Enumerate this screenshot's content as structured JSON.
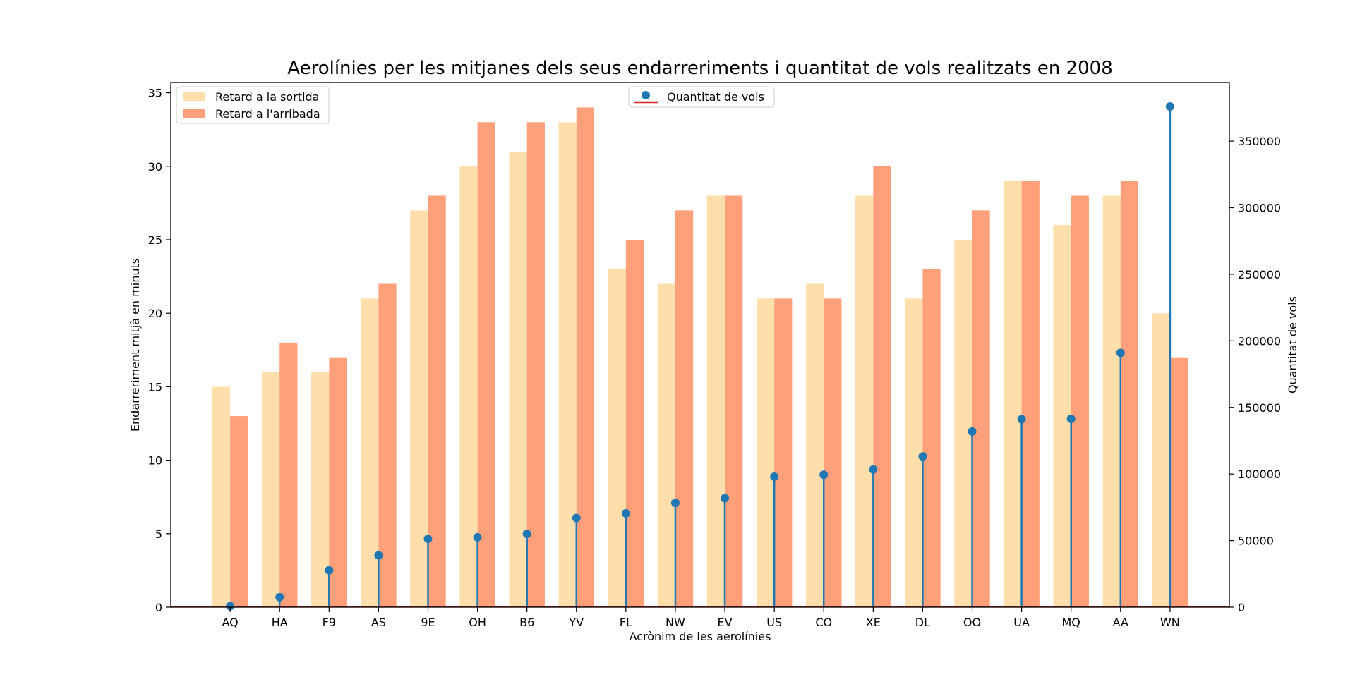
{
  "chart_data": {
    "type": "bar",
    "title": "Aerolínies per les mitjanes dels seus endarreriments i quantitat de vols realitzats en 2008",
    "xlabel": "Acrònim de les aerolínies",
    "ylabel": "Endarreriment mitjà en minuts",
    "y2label": "Quantitat de vols",
    "ylim": [
      0,
      35.7
    ],
    "y2lim": [
      0,
      394000
    ],
    "yticks": [
      0,
      5,
      10,
      15,
      20,
      25,
      30,
      35
    ],
    "y2ticks": [
      0,
      50000,
      100000,
      150000,
      200000,
      250000,
      300000,
      350000
    ],
    "grid": false,
    "categories": [
      "AQ",
      "HA",
      "F9",
      "AS",
      "9E",
      "OH",
      "B6",
      "YV",
      "FL",
      "NW",
      "EV",
      "US",
      "CO",
      "XE",
      "DL",
      "OO",
      "UA",
      "MQ",
      "AA",
      "WN"
    ],
    "series": [
      {
        "name": "Retard a la sortida",
        "type": "bar",
        "axis": "left",
        "color": "#fedfab",
        "values": [
          15,
          16,
          16,
          21,
          27,
          30,
          31,
          33,
          23,
          22,
          28,
          21,
          22,
          28,
          21,
          25,
          29,
          26,
          28,
          20
        ]
      },
      {
        "name": "Retard a l'arribada",
        "type": "bar",
        "axis": "left",
        "color": "#ffa07a",
        "values": [
          13,
          18,
          17,
          22,
          28,
          33,
          33,
          34,
          25,
          27,
          28,
          21,
          21,
          30,
          23,
          27,
          29,
          28,
          29,
          17
        ]
      },
      {
        "name": "Quantitat de vols",
        "type": "stem",
        "axis": "right",
        "color": "#1f77b4",
        "baseline_color": "#d62728",
        "values": [
          800,
          7500,
          27700,
          38900,
          51400,
          52500,
          55100,
          67000,
          70500,
          78300,
          81800,
          98000,
          99400,
          103400,
          113200,
          131900,
          141100,
          141400,
          191000,
          376000
        ]
      }
    ],
    "legend_left": {
      "position": "upper-left",
      "items": [
        "Retard a la sortida",
        "Retard a l'arribada"
      ]
    },
    "legend_right": {
      "position": "upper-center",
      "items": [
        "Quantitat de vols"
      ]
    }
  }
}
